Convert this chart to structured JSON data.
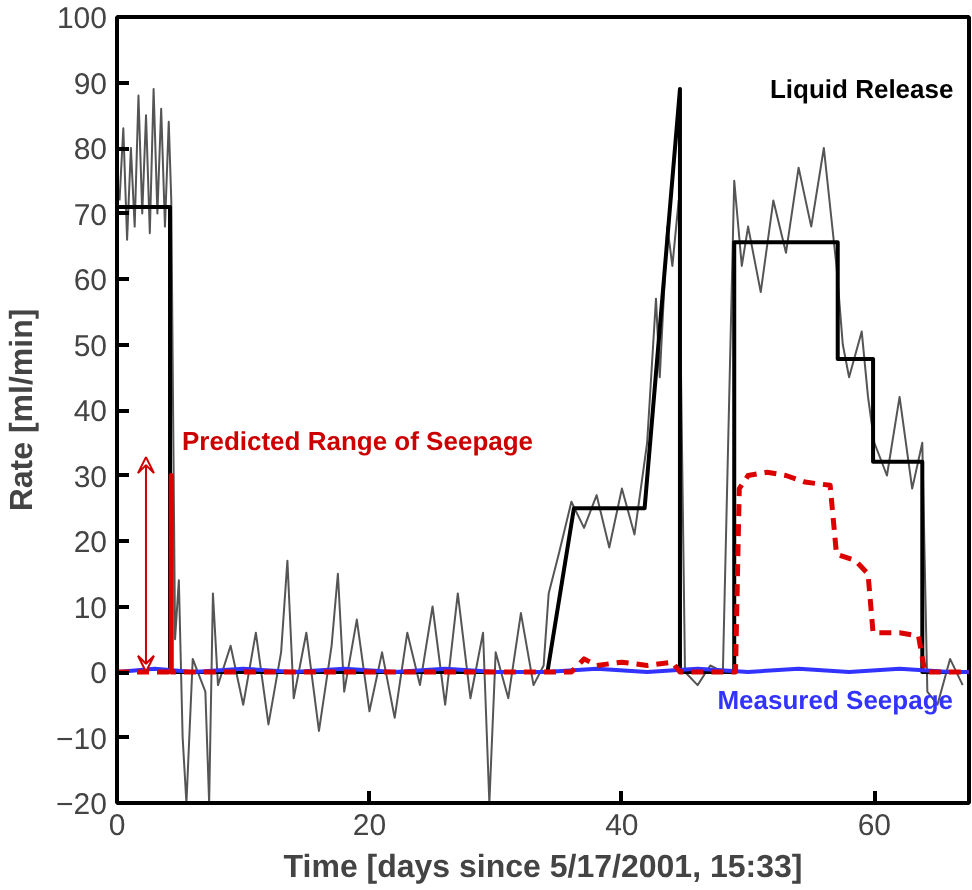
{
  "chart_data": {
    "type": "line",
    "xlabel": "Time [days since 5/17/2001, 15:33]",
    "ylabel": "Rate [ml/min]",
    "xlim": [
      0,
      67.5
    ],
    "ylim": [
      -20,
      100
    ],
    "xticks": [
      0,
      20,
      40,
      60
    ],
    "yticks": [
      -20,
      -10,
      0,
      10,
      20,
      30,
      40,
      50,
      60,
      70,
      80,
      90,
      100
    ],
    "grid": false,
    "series": [
      {
        "color": "#555555",
        "line_style": "solid",
        "x": [
          0.2,
          0.5,
          0.8,
          1.1,
          1.4,
          1.7,
          2.0,
          2.3,
          2.6,
          2.9,
          3.2,
          3.5,
          3.8,
          4.1,
          4.3,
          4.6,
          4.9,
          5.2,
          5.5,
          6,
          7,
          7.3,
          7.6,
          8,
          9,
          10,
          11,
          12,
          13,
          13.5,
          14,
          15,
          16,
          17,
          17.5,
          18,
          19,
          20,
          21,
          22,
          23,
          24,
          25,
          26,
          27,
          28,
          29,
          29.5,
          30,
          31,
          32,
          33,
          33.8,
          34.2,
          35,
          36,
          37,
          38,
          39,
          40,
          41,
          42,
          42.7,
          43,
          43.6,
          44,
          44.5,
          45,
          46,
          47,
          48,
          48.9,
          49.5,
          50,
          51,
          52,
          53,
          54,
          55,
          56,
          57,
          57.5,
          58,
          59,
          59.5,
          60,
          61,
          62,
          63,
          63.8,
          64.2,
          65,
          66,
          67
        ],
        "values": [
          72,
          83,
          66,
          80,
          68,
          88,
          70,
          85,
          67,
          89,
          70,
          86,
          68,
          84,
          72,
          5,
          14,
          -10,
          -20,
          2,
          -3,
          -20,
          12,
          -2,
          4,
          -5,
          6,
          -8,
          3,
          17,
          -4,
          6,
          -9,
          4,
          15,
          -3,
          8,
          -6,
          3,
          -7,
          6,
          -2,
          10,
          -5,
          12,
          -4,
          6,
          -20,
          3,
          -4,
          9,
          -2,
          1,
          12,
          18,
          26,
          22,
          27,
          19,
          28,
          21,
          35,
          57,
          45,
          68,
          62,
          72,
          0,
          -2,
          1,
          0,
          75,
          62,
          68,
          58,
          72,
          64,
          77,
          68,
          80,
          62,
          50,
          45,
          52,
          42,
          35,
          30,
          42,
          28,
          35,
          -3,
          -5,
          2,
          -2
        ]
      },
      {
        "name": "Liquid Release",
        "color": "#000000",
        "line_style": "solid",
        "x": [
          0,
          4.2,
          4.2,
          34.1,
          36.2,
          41.8,
          44.6,
          44.6,
          48.9,
          48.9,
          57.1,
          57.1,
          59.9,
          59.9,
          63.8,
          63.8,
          67.5
        ],
        "values": [
          71,
          71,
          0,
          0,
          25,
          25,
          89,
          0,
          0,
          65.6,
          65.6,
          47.8,
          47.8,
          32.1,
          32.1,
          0,
          0
        ]
      },
      {
        "name": "Measured Seepage",
        "color": "#3333ff",
        "line_style": "solid",
        "x": [
          0,
          3,
          6,
          10,
          14,
          18,
          22,
          26,
          30,
          34,
          38,
          42,
          46,
          50,
          54,
          58,
          62,
          66,
          67.5
        ],
        "values": [
          0,
          0.5,
          0,
          0.5,
          0,
          0.5,
          0,
          0.5,
          0,
          0,
          0.5,
          0,
          0.5,
          0,
          0.5,
          0,
          0.5,
          0,
          0
        ]
      },
      {
        "color": "#dd0000",
        "line_style": "dashed",
        "x": [
          0,
          4.3,
          4.3,
          4.3,
          34,
          36,
          37,
          38,
          40,
          42,
          44,
          44.6,
          49,
          49.3,
          50,
          51.5,
          53,
          54.5,
          56.5,
          57,
          58.5,
          59.5,
          59.9,
          62,
          63.5,
          64,
          67.5
        ],
        "values": [
          0,
          0,
          30,
          0,
          0,
          0,
          2,
          1,
          1.5,
          1,
          1.5,
          0,
          0,
          28,
          30,
          30.5,
          30,
          29,
          28.5,
          18,
          17,
          15,
          6,
          6,
          5.5,
          0,
          0
        ]
      }
    ],
    "annotations": [
      "Predicted Range of Seepage"
    ]
  }
}
